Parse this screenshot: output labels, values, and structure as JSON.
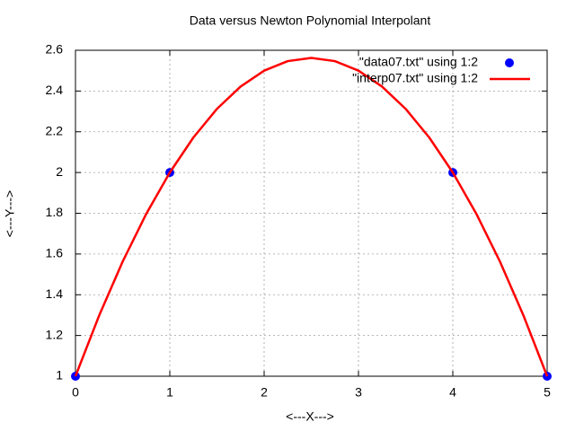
{
  "chart_data": {
    "type": "line",
    "title": "Data versus Newton Polynomial Interpolant",
    "x_label": "<---X--->",
    "y_label": "<---Y--->",
    "xlim": [
      0,
      5
    ],
    "xticks": [
      0,
      1,
      2,
      3,
      4,
      5
    ],
    "ylim": [
      1,
      2.6
    ],
    "yticks": [
      1,
      1.2,
      1.4,
      1.6,
      1.8,
      2,
      2.2,
      2.4,
      2.6
    ],
    "grid": true,
    "legend": "top-right",
    "series": [
      {
        "name": "\"data07.txt\" using 1:2",
        "color": "#0000ff",
        "style": "points",
        "x": [
          0,
          1,
          4,
          5
        ],
        "values": [
          1,
          2,
          2,
          1
        ]
      },
      {
        "name": "\"interp07.txt\" using 1:2",
        "color": "#ff0000",
        "style": "line",
        "x": [
          0,
          0.25,
          0.5,
          0.75,
          1,
          1.25,
          1.5,
          1.75,
          2,
          2.25,
          2.5,
          2.75,
          3,
          3.25,
          3.5,
          3.75,
          4,
          4.25,
          4.5,
          4.75,
          5
        ],
        "values": [
          1,
          1.296875,
          1.5625,
          1.796875,
          2,
          2.171875,
          2.3125,
          2.421875,
          2.5,
          2.546875,
          2.5625,
          2.546875,
          2.5,
          2.421875,
          2.3125,
          2.171875,
          2,
          1.796875,
          1.5625,
          1.296875,
          1
        ]
      }
    ]
  }
}
